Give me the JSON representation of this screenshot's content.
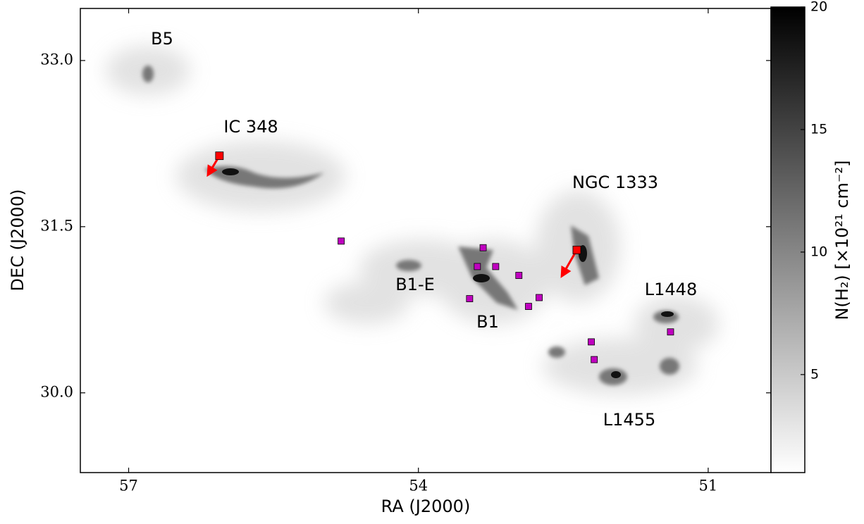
{
  "chart_data": {
    "type": "scatter",
    "xlabel": "RA (J2000)",
    "ylabel": "DEC (J2000)",
    "xlim": [
      57.5,
      50.35
    ],
    "ylim": [
      29.28,
      33.47
    ],
    "xticks": [
      57,
      54,
      51
    ],
    "yticks": [
      {
        "value": 30.0,
        "label": "30.0"
      },
      31.5,
      {
        "value": 33.0,
        "label": "33.0"
      }
    ],
    "series": [
      {
        "color": "#c000c0",
        "x": [
          54.8,
          53.33,
          53.39,
          53.2,
          52.96,
          53.47,
          52.86,
          52.75,
          52.21,
          52.18,
          51.39
        ],
        "values": [
          31.37,
          31.31,
          31.14,
          31.14,
          31.06,
          30.85,
          30.78,
          30.86,
          30.46,
          30.3,
          30.55
        ]
      },
      {
        "color": "#ff0000",
        "x": [
          56.06,
          52.36
        ],
        "values": [
          32.14,
          31.29
        ]
      }
    ],
    "annotations": [
      "B5",
      "IC 348",
      "NGC 1333",
      "B1-E",
      "B1",
      "L1448",
      "L1455"
    ],
    "colorbar": {
      "label": "N(H₂) [×10²¹ cm⁻²]",
      "lim": [
        1,
        20
      ],
      "ticks": [
        5,
        10,
        15,
        20
      ]
    }
  }
}
